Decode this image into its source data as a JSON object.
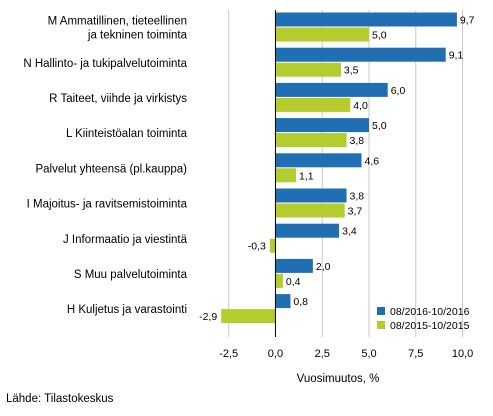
{
  "chart_data": {
    "type": "bar",
    "orientation": "horizontal",
    "categories": [
      [
        "M Ammatillinen, tieteellinen",
        "ja tekninen toiminta"
      ],
      [
        "N Hallinto- ja tukipalvelutoiminta"
      ],
      [
        "R Taiteet, viihde ja virkistys"
      ],
      [
        "L Kiinteistöalan toiminta"
      ],
      [
        "Palvelut yhteensä (pl.kauppa)"
      ],
      [
        "I Majoitus- ja ravitsemistoiminta"
      ],
      [
        "J Informaatio ja viestintä"
      ],
      [
        "S Muu palvelutoiminta"
      ],
      [
        "H Kuljetus ja varastointi"
      ]
    ],
    "series": [
      {
        "name": "08/2016-10/2016",
        "color": "#1f6fb2",
        "values": [
          9.7,
          9.1,
          6.0,
          5.0,
          4.6,
          3.8,
          3.4,
          2.0,
          0.8
        ],
        "labels": [
          "9,7",
          "9,1",
          "6,0",
          "5,0",
          "4,6",
          "3,8",
          "3,4",
          "2,0",
          "0,8"
        ]
      },
      {
        "name": "08/2015-10/2015",
        "color": "#b5cc2e",
        "values": [
          5.0,
          3.5,
          4.0,
          3.8,
          1.1,
          3.7,
          -0.3,
          0.4,
          -2.9
        ],
        "labels": [
          "5,0",
          "3,5",
          "4,0",
          "3,8",
          "1,1",
          "3,7",
          "-0,3",
          "0,4",
          "-2,9"
        ]
      }
    ],
    "xlim": [
      -4.3,
      11.2
    ],
    "xticks": [
      -2.5,
      0,
      2.5,
      5,
      7.5,
      10
    ],
    "xtick_labels": [
      "-2,5",
      "0,0",
      "2,5",
      "5,0",
      "7,5",
      "10,0"
    ],
    "xlabel": "Vuosimuutos, %",
    "ylabel": "",
    "title": "",
    "grid": "vertical",
    "legend": "bottom-right"
  },
  "footer": {
    "source": "Lähde: Tilastokeskus"
  }
}
